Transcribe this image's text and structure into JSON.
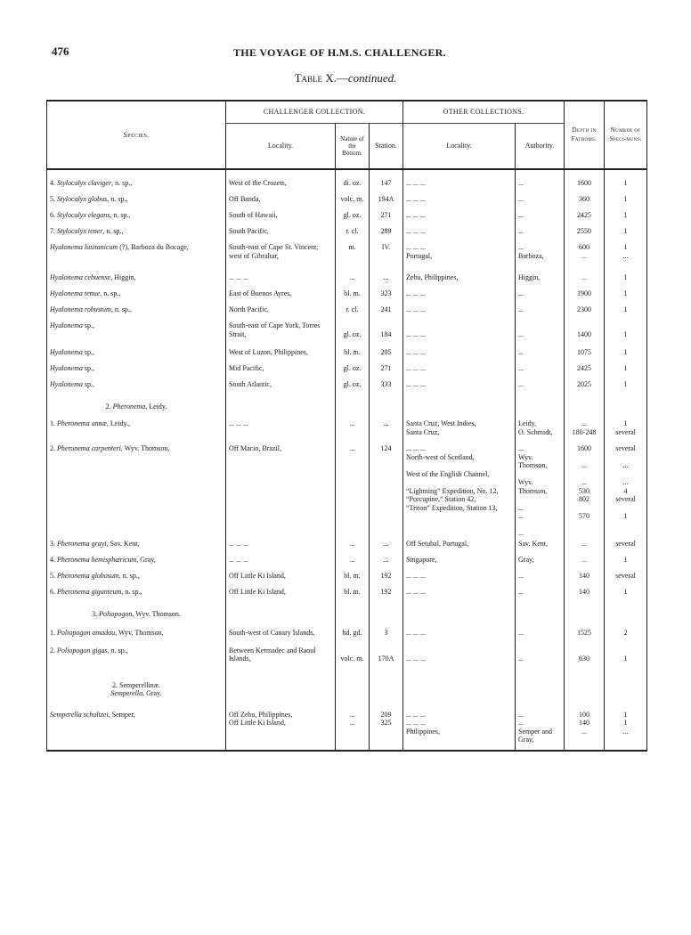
{
  "page_number": "476",
  "running_head": "THE VOYAGE OF H.M.S. CHALLENGER.",
  "caption": {
    "prefix": "Table X.—",
    "suffix": "continued."
  },
  "headers": {
    "species": "Species.",
    "challenger": "CHALLENGER COLLECTION.",
    "other": "OTHER COLLECTIONS.",
    "ch_locality": "Locality.",
    "nature": "Nature of the Bottom.",
    "station": "Station.",
    "ot_locality": "Locality.",
    "authority": "Authority.",
    "depth": "Depth in Fathoms.",
    "number": "Number of Speci-mens."
  },
  "rows": [
    {
      "n": "4.",
      "name": "Stylocalyx claviger",
      "rest": ", n. sp.,",
      "loc": "West of the Crozets,",
      "nat": "di. oz.",
      "st": "147",
      "oloc": "...      ...      ...",
      "auth": "...",
      "depth": "1600",
      "num": "1"
    },
    {
      "n": "5.",
      "name": "Stylocalyx globus",
      "rest": ", n. sp.,",
      "loc": "Off Banda,",
      "nat": "volc. m.",
      "st": "194A",
      "oloc": "...      ...      ...",
      "auth": "...",
      "depth": "360",
      "num": "1"
    },
    {
      "n": "6.",
      "name": "Stylocalyx elegans",
      "rest": ", n. sp.,",
      "loc": "South of Hawaii,",
      "nat": "gl. oz.",
      "st": "271",
      "oloc": "...      ...      ...",
      "auth": "...",
      "depth": "2425",
      "num": "1"
    },
    {
      "n": "7.",
      "name": "Stylocalyx tener",
      "rest": ", n. sp.,",
      "loc": "South Pacific,",
      "nat": "r. cl.",
      "st": "289",
      "oloc": "...      ...      ...",
      "auth": "...",
      "depth": "2550",
      "num": "1"
    },
    {
      "n": "",
      "name": "Hyalonema lusitanicum",
      "rest": " (?), Barboza du Bocage,",
      "loc": "South-east of Cape St. Vincent; west of Gibraltar,",
      "nat": "m.",
      "st": "IV.",
      "oloc": "...      ...      ...\nPortugal,",
      "auth": "...\nBarboza,",
      "depth": "600\n...",
      "num": "1\n..."
    },
    {
      "n": "",
      "name": "Hyalonema cebuense",
      "rest": ", Higgin,",
      "loc": "...      ...      ...",
      "nat": "...",
      "st": "...",
      "oloc": "Zebu, Philippines,",
      "auth": "Higgin,",
      "depth": "...",
      "num": "1"
    },
    {
      "n": "",
      "name": "Hyalonema tenue",
      "rest": ", n. sp.,",
      "loc": "East of Buenos Ayres,",
      "nat": "bl. m.",
      "st": "323",
      "oloc": "...      ...      ...",
      "auth": "...",
      "depth": "1900",
      "num": "1"
    },
    {
      "n": "",
      "name": "Hyalonema robustum",
      "rest": ", n. sp.,",
      "loc": "North Pacific,",
      "nat": "r. cl.",
      "st": "241",
      "oloc": "...      ...      ...",
      "auth": "...",
      "depth": "2300",
      "num": "1"
    },
    {
      "n": "",
      "name": "Hyalonema",
      "rest": " sp.,",
      "loc": "South-east of Cape York, Torres Strait,",
      "nat": "\ngl. oz.",
      "st": "\n184",
      "oloc": "\n...      ...      ...",
      "auth": "\n...",
      "depth": "\n1400",
      "num": "\n1"
    },
    {
      "n": "",
      "name": "Hyalonema",
      "rest": " sp.,",
      "loc": "West of Luzon, Philippines,",
      "nat": "bl. m.",
      "st": "205",
      "oloc": "...      ...      ...",
      "auth": "...",
      "depth": "1075",
      "num": "1"
    },
    {
      "n": "",
      "name": "Hyalonema",
      "rest": " sp.,",
      "loc": "Mid Pacific,",
      "nat": "gl. oz.",
      "st": "271",
      "oloc": "...      ...      ...",
      "auth": "...",
      "depth": "2425",
      "num": "1"
    },
    {
      "n": "",
      "name": "Hyalonema",
      "rest": " sp.,",
      "loc": "South Atlantic,",
      "nat": "gl. oz.",
      "st": "333",
      "oloc": "...      ...      ...",
      "auth": "...",
      "depth": "2025",
      "num": "1"
    },
    {
      "genus": true,
      "n": "2.",
      "name": "Pheronema",
      "rest": ", Leidy."
    },
    {
      "n": "1.",
      "name": "Pheronema annæ",
      "rest": ", Leidy.,",
      "loc": "...      ...      ...",
      "nat": "...",
      "st": "...",
      "oloc": "Santa Cruz, West Indies,\nSanta Cruz,",
      "auth": "Leidy,\nO. Schmidt,",
      "depth": "...\n180-248",
      "num": "1\nseveral"
    },
    {
      "n": "2.",
      "name": "Pheronema carpenteri",
      "rest": ", Wyv. Thomson,",
      "loc": "Off Macio, Brazil,",
      "nat": "...",
      "st": "124",
      "oloc": "...      ...      ...\nNorth-west of Scotland,\n\nWest of the English Channel,\n\n“Lightning” Expedition, No. 12,\n“Porcupine,” Station 42,\n“Triton” Expedition, Station 13,",
      "auth": "...\nWyv. Thomson,\n\nWyv. Thomson,\n\n...\n...\n\n...",
      "depth": "1600\n\n...\n\n...\n530\n802\n\n570",
      "num": "several\n\n...\n\n...\n4\nseveral\n\n1"
    },
    {
      "n": "3.",
      "name": "Pheronema grayi",
      "rest": ", Sav. Kent,",
      "loc": "...      ...      ...",
      "nat": "...",
      "st": "...",
      "oloc": "Off Setubal, Portugal,",
      "auth": "Sav. Kent,",
      "depth": "...",
      "num": "several"
    },
    {
      "n": "4.",
      "name": "Pheronema hemisphæricum",
      "rest": ", Gray,",
      "loc": "...      ...      ...",
      "nat": "...",
      "st": "...",
      "oloc": "Singapore,",
      "auth": "Gray,",
      "depth": "...",
      "num": "1"
    },
    {
      "n": "5.",
      "name": "Pheronema globosum",
      "rest": ", n. sp.,",
      "loc": "Off Little Ki Island,",
      "nat": "bl. m.",
      "st": "192",
      "oloc": "...      ...      ...",
      "auth": "...",
      "depth": "140",
      "num": "several"
    },
    {
      "n": "6.",
      "name": "Pheronema giganteum",
      "rest": ", n. sp.,",
      "loc": "Off Little Ki Island,",
      "nat": "bl. m.",
      "st": "192",
      "oloc": "...      ...      ...",
      "auth": "...",
      "depth": "140",
      "num": "1"
    },
    {
      "genus": true,
      "n": "3.",
      "name": "Poliopogon",
      "rest": ", Wyv. Thomson."
    },
    {
      "n": "1.",
      "name": "Poliopogon amadou",
      "rest": ", Wyv. Thomson,",
      "loc": "South-west of Canary Islands,",
      "nat": "hd. gd.",
      "st": "3",
      "oloc": "...      ...      ...",
      "auth": "...",
      "depth": "1525",
      "num": "2"
    },
    {
      "n": "2.",
      "name": "Poliopogon gigas",
      "rest": ", n. sp.,",
      "loc": "Between Kermadec and Raoul Islands,",
      "nat": "\nvolc. m.",
      "st": "\n170A",
      "oloc": "\n...      ...      ...",
      "auth": "\n...",
      "depth": "\n630",
      "num": "\n1"
    },
    {
      "genus": true,
      "n": "2.",
      "name": "",
      "rest": "Semperellinæ.",
      "sub": "Semperella",
      "subrest": ", Gray."
    },
    {
      "n": "",
      "name": "Semperella schultzei",
      "rest": ", Semper,",
      "loc": "Off Zebu, Philippines,\nOff Little Ki Island,",
      "nat": "...\n...",
      "st": "209\n325",
      "oloc": "...      ...      ...\n...      ...      ...\nPhilippines,",
      "auth": "...\n...\nSemper and Gray,",
      "depth": "100\n140\n...",
      "num": "1\n1\n..."
    }
  ]
}
